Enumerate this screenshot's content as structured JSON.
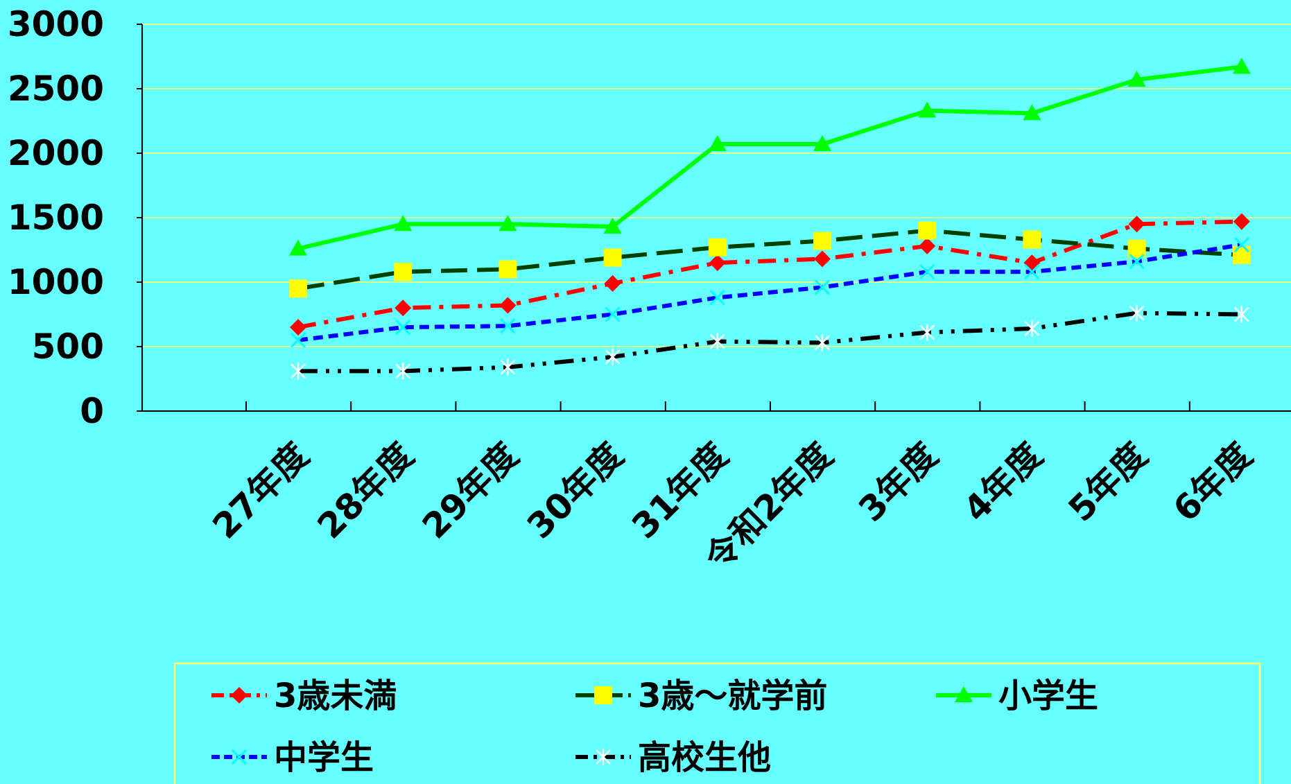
{
  "chart_data": {
    "type": "line",
    "title": "",
    "xlabel": "",
    "ylabel": "",
    "ylim": [
      0,
      3000
    ],
    "yticks": [
      "0",
      "500",
      "1000",
      "1500",
      "2000",
      "2500",
      "3000"
    ],
    "categories": [
      "27年度",
      "28年度",
      "29年度",
      "30年度",
      "31年度",
      "令和2年度",
      "3年度",
      "4年度",
      "5年度",
      "6年度"
    ],
    "grid": "horizontal",
    "legend_position": "bottom",
    "background": "#66FFFF",
    "gridline_color": "#FFFF66",
    "series": [
      {
        "name": "3歳未満",
        "color": "#FF0000",
        "marker": "diamond",
        "dash": "dash-dot",
        "values": [
          650,
          800,
          820,
          990,
          1150,
          1180,
          1280,
          1150,
          1450,
          1470
        ]
      },
      {
        "name": "3歳～就学前",
        "color": "#004000",
        "marker": "square",
        "marker_color": "#FFFF00",
        "dash": "long-dash",
        "values": [
          950,
          1080,
          1100,
          1190,
          1270,
          1320,
          1400,
          1330,
          1260,
          1210
        ]
      },
      {
        "name": "小学生",
        "color": "#00FF00",
        "marker": "triangle",
        "dash": "solid",
        "values": [
          1260,
          1450,
          1450,
          1430,
          2070,
          2070,
          2330,
          2310,
          2570,
          2670
        ]
      },
      {
        "name": "中学生",
        "color": "#0000FF",
        "marker": "x",
        "marker_color": "#00FFFF",
        "dash": "short-dash",
        "values": [
          550,
          650,
          660,
          750,
          880,
          960,
          1080,
          1080,
          1160,
          1290
        ]
      },
      {
        "name": "高校生他",
        "color": "#000000",
        "marker": "asterisk",
        "marker_color": "#FFFFFF",
        "dash": "dash-dot-dot",
        "values": [
          310,
          310,
          340,
          420,
          540,
          530,
          610,
          640,
          760,
          750
        ]
      }
    ]
  }
}
